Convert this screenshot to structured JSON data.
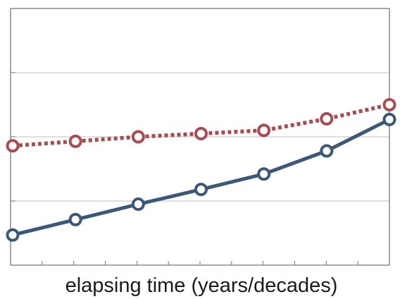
{
  "chart_data": {
    "type": "line",
    "title": "",
    "xlabel": "elapsing time (years/decades)",
    "ylabel": "",
    "x": [
      1,
      2,
      3,
      4,
      5,
      6,
      7
    ],
    "xlim": [
      1,
      7
    ],
    "ylim": [
      0,
      4
    ],
    "grid": "horizontal",
    "series": [
      {
        "values": [
          1.86,
          1.93,
          2.0,
          2.05,
          2.1,
          2.28,
          2.5
        ],
        "color": "#a84d4f",
        "line_style": "dotted",
        "marker": "open-circle"
      },
      {
        "values": [
          0.47,
          0.71,
          0.95,
          1.18,
          1.42,
          1.78,
          2.27
        ],
        "color": "#3b5878",
        "line_style": "solid",
        "marker": "open-circle"
      }
    ]
  }
}
